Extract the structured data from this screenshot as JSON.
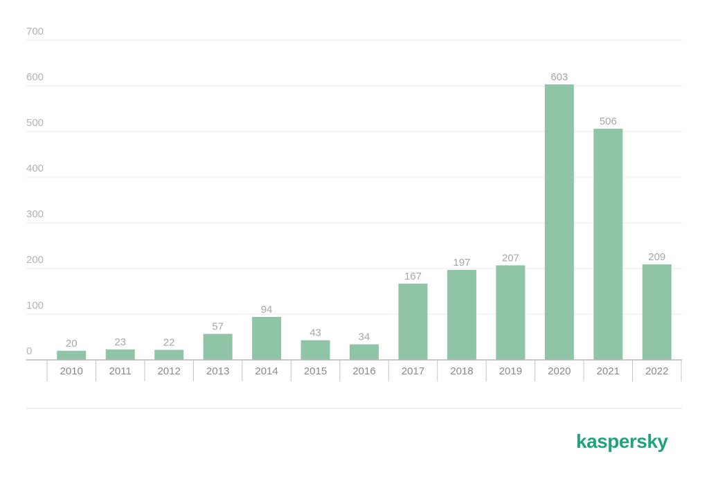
{
  "brand": {
    "logo_text": "kaspersky",
    "logo_color": "#1fa37f"
  },
  "chart_data": {
    "type": "bar",
    "categories": [
      "2010",
      "2011",
      "2012",
      "2013",
      "2014",
      "2015",
      "2016",
      "2017",
      "2018",
      "2019",
      "2020",
      "2021",
      "2022"
    ],
    "values": [
      20,
      23,
      22,
      57,
      94,
      43,
      34,
      167,
      197,
      207,
      603,
      506,
      209
    ],
    "ylim": [
      0,
      700
    ],
    "yticks": [
      0,
      100,
      200,
      300,
      400,
      500,
      600,
      700
    ],
    "grid": true,
    "bar_color": "#8fc4a7",
    "title": "",
    "xlabel": "",
    "ylabel": ""
  }
}
